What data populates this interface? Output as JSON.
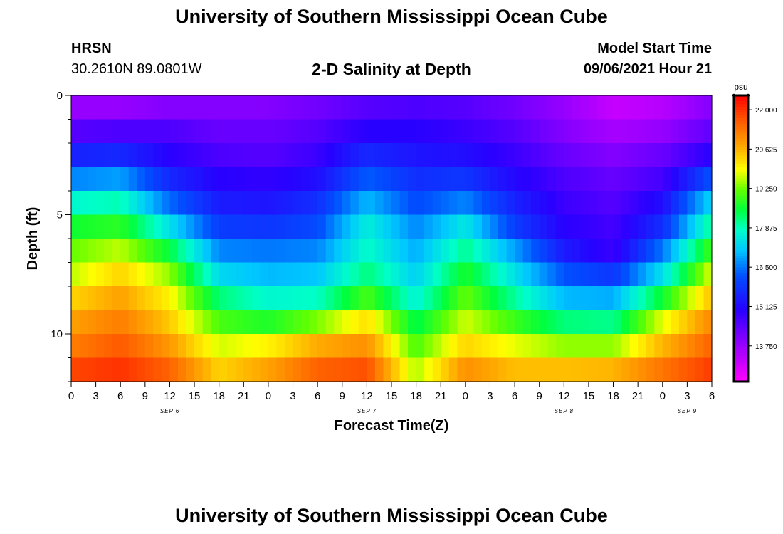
{
  "page": {
    "title_top": "University of Southern Mississippi Ocean Cube",
    "title_bottom": "University of Southern Mississippi Ocean Cube",
    "station": "HRSN",
    "coords": "30.2610N  89.0801W",
    "plot_title": "2-D Salinity at Depth",
    "model_start_label": "Model Start Time",
    "model_start_value": "09/06/2021 Hour 21"
  },
  "chart_data": {
    "type": "heatmap",
    "title": "2-D Salinity at Depth",
    "xlabel": "Forecast Time(Z)",
    "ylabel": "Depth (ft)",
    "units": "psu",
    "ylim": [
      0,
      12
    ],
    "y_ticks": [
      0,
      5,
      10
    ],
    "x_ticks": [
      "0",
      "3",
      "6",
      "9",
      "12",
      "15",
      "18",
      "21",
      "0",
      "3",
      "6",
      "9",
      "12",
      "15",
      "18",
      "21",
      "0",
      "3",
      "6",
      "9",
      "12",
      "15",
      "18",
      "21",
      "0",
      "3",
      "6"
    ],
    "date_labels": [
      {
        "label": "SEP 6",
        "tick_index": 4
      },
      {
        "label": "SEP 7",
        "tick_index": 12
      },
      {
        "label": "SEP 8",
        "tick_index": 20
      },
      {
        "label": "SEP 9",
        "tick_index": 25
      }
    ],
    "colorbar": {
      "min": 12.5,
      "max": 22.5,
      "ticks": [
        22.0,
        20.625,
        19.25,
        17.875,
        16.5,
        15.125,
        13.75
      ],
      "tick_labels": [
        "22.000",
        "20.625",
        "19.250",
        "17.875",
        "16.500",
        "15.125",
        "13.750"
      ]
    },
    "depth_levels_ft": [
      0.5,
      1.5,
      2.5,
      3.5,
      4.5,
      5.5,
      6.5,
      7.5,
      8.5,
      9.5,
      10.5,
      11.5
    ],
    "columns": {
      "hours": [
        0,
        6,
        12,
        18,
        24,
        30,
        36,
        42,
        48,
        54,
        60,
        66,
        72,
        78
      ],
      "salinity_psu": [
        [
          13.8,
          14.5,
          15.5,
          16.6,
          17.7,
          18.6,
          19.2,
          19.6,
          20.3,
          20.8,
          21.2,
          21.8
        ],
        [
          13.8,
          14.6,
          15.6,
          16.8,
          17.9,
          18.8,
          19.6,
          20.3,
          20.8,
          21.2,
          21.6,
          22.0
        ],
        [
          14.0,
          14.6,
          15.0,
          15.6,
          16.4,
          17.4,
          18.5,
          19.4,
          20.0,
          20.4,
          20.9,
          21.5
        ],
        [
          14.0,
          14.3,
          14.6,
          15.0,
          15.4,
          15.9,
          16.6,
          17.3,
          18.2,
          19.0,
          19.7,
          20.3
        ],
        [
          14.0,
          14.3,
          14.5,
          14.9,
          15.3,
          15.8,
          16.5,
          17.0,
          17.7,
          18.7,
          20.0,
          20.8
        ],
        [
          14.2,
          14.5,
          14.8,
          15.2,
          15.7,
          16.1,
          16.6,
          17.1,
          17.8,
          19.3,
          20.7,
          21.5
        ],
        [
          14.5,
          15.0,
          15.6,
          16.3,
          17.0,
          17.6,
          17.8,
          18.2,
          19.0,
          20.2,
          21.0,
          21.7
        ],
        [
          14.6,
          15.0,
          15.3,
          15.7,
          16.1,
          16.6,
          16.9,
          17.2,
          17.6,
          18.4,
          19.0,
          19.5
        ],
        [
          14.5,
          14.8,
          15.2,
          15.8,
          16.6,
          17.5,
          18.1,
          18.7,
          19.2,
          19.7,
          20.3,
          21.0
        ],
        [
          14.2,
          14.5,
          14.8,
          15.1,
          15.5,
          15.9,
          16.8,
          17.4,
          18.0,
          18.9,
          19.8,
          20.5
        ],
        [
          13.8,
          14.0,
          14.3,
          14.6,
          14.8,
          15.0,
          15.4,
          16.2,
          17.0,
          18.2,
          19.4,
          20.5
        ],
        [
          13.2,
          13.6,
          14.0,
          14.3,
          14.5,
          14.7,
          14.8,
          15.8,
          16.9,
          18.1,
          19.4,
          20.6
        ],
        [
          13.4,
          13.8,
          14.3,
          14.7,
          15.2,
          15.7,
          16.5,
          17.4,
          18.6,
          19.8,
          20.6,
          21.3
        ],
        [
          14.0,
          14.4,
          15.0,
          16.2,
          17.3,
          18.1,
          19.0,
          19.8,
          20.5,
          21.1,
          21.5,
          21.9
        ]
      ]
    }
  }
}
